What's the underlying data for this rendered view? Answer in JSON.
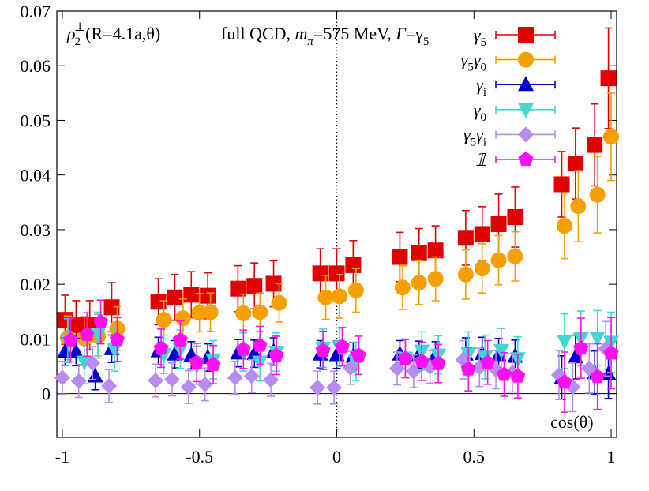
{
  "chart_data": {
    "type": "scatter",
    "title_parts": {
      "left_rho": "ρ",
      "left_sub": "2",
      "left_sup": "⊥",
      "left_rest": "(R=4.1a,θ)",
      "right_pre": "full QCD, ",
      "right_m": "m",
      "right_msub": "π",
      "right_mid": "=575 MeV, ",
      "right_gamma": "Γ",
      "right_eq": "=γ",
      "right_eqsub": "5"
    },
    "xlabel": "cos(θ)",
    "ylabel": "",
    "xlim": [
      -1.02,
      1.02
    ],
    "ylim": [
      -0.008,
      0.07
    ],
    "xticks": [
      {
        "v": -1,
        "label": "-1"
      },
      {
        "v": -0.5,
        "label": "-0.5"
      },
      {
        "v": 0,
        "label": "0"
      },
      {
        "v": 0.5,
        "label": "0.5"
      },
      {
        "v": 1,
        "label": "1"
      }
    ],
    "yticks": [
      {
        "v": 0,
        "label": "0"
      },
      {
        "v": 0.01,
        "label": "0.01"
      },
      {
        "v": 0.02,
        "label": "0.02"
      },
      {
        "v": 0.03,
        "label": "0.03"
      },
      {
        "v": 0.04,
        "label": "0.04"
      },
      {
        "v": 0.05,
        "label": "0.05"
      },
      {
        "v": 0.06,
        "label": "0.06"
      },
      {
        "v": 0.07,
        "label": "0.07"
      }
    ],
    "grid": false,
    "zero_line": true,
    "vertical_dotted_at": 0,
    "legend_placement": "top-right",
    "series": [
      {
        "name": "γ5",
        "legend_main": "γ",
        "legend_sub": "5",
        "color": "#e00000",
        "marker": "square",
        "points": [
          {
            "x": -0.99,
            "y": 0.0135,
            "err": 0.0045
          },
          {
            "x": -0.95,
            "y": 0.0125,
            "err": 0.0045
          },
          {
            "x": -0.9,
            "y": 0.0125,
            "err": 0.0045
          },
          {
            "x": -0.82,
            "y": 0.0158,
            "err": 0.0045
          },
          {
            "x": -0.65,
            "y": 0.0168,
            "err": 0.0042
          },
          {
            "x": -0.59,
            "y": 0.0176,
            "err": 0.0042
          },
          {
            "x": -0.53,
            "y": 0.0181,
            "err": 0.0042
          },
          {
            "x": -0.47,
            "y": 0.0179,
            "err": 0.0042
          },
          {
            "x": -0.36,
            "y": 0.0192,
            "err": 0.0042
          },
          {
            "x": -0.3,
            "y": 0.0197,
            "err": 0.0042
          },
          {
            "x": -0.23,
            "y": 0.0201,
            "err": 0.0042
          },
          {
            "x": -0.06,
            "y": 0.022,
            "err": 0.0045
          },
          {
            "x": 0.0,
            "y": 0.022,
            "err": 0.0045
          },
          {
            "x": 0.06,
            "y": 0.0235,
            "err": 0.0045
          },
          {
            "x": 0.23,
            "y": 0.025,
            "err": 0.0045
          },
          {
            "x": 0.3,
            "y": 0.0257,
            "err": 0.0045
          },
          {
            "x": 0.36,
            "y": 0.0262,
            "err": 0.0045
          },
          {
            "x": 0.47,
            "y": 0.0285,
            "err": 0.005
          },
          {
            "x": 0.53,
            "y": 0.0292,
            "err": 0.005
          },
          {
            "x": 0.59,
            "y": 0.031,
            "err": 0.0055
          },
          {
            "x": 0.65,
            "y": 0.0323,
            "err": 0.0055
          },
          {
            "x": 0.82,
            "y": 0.0383,
            "err": 0.006
          },
          {
            "x": 0.87,
            "y": 0.0421,
            "err": 0.0065
          },
          {
            "x": 0.94,
            "y": 0.0455,
            "err": 0.0075
          },
          {
            "x": 0.99,
            "y": 0.0577,
            "err": 0.0092
          }
        ]
      },
      {
        "name": "γ5γ0",
        "legend_main": "γ",
        "legend_sub": "5",
        "legend_main2": "γ",
        "legend_sub2": "0",
        "color": "#f5a000",
        "marker": "circle",
        "points": [
          {
            "x": -0.98,
            "y": 0.0102,
            "err": 0.004
          },
          {
            "x": -0.92,
            "y": 0.0101,
            "err": 0.004
          },
          {
            "x": -0.87,
            "y": 0.0105,
            "err": 0.004
          },
          {
            "x": -0.8,
            "y": 0.0119,
            "err": 0.004
          },
          {
            "x": -0.63,
            "y": 0.0135,
            "err": 0.0035
          },
          {
            "x": -0.56,
            "y": 0.0138,
            "err": 0.0035
          },
          {
            "x": -0.5,
            "y": 0.0148,
            "err": 0.0035
          },
          {
            "x": -0.46,
            "y": 0.0149,
            "err": 0.0035
          },
          {
            "x": -0.34,
            "y": 0.0147,
            "err": 0.0035
          },
          {
            "x": -0.28,
            "y": 0.0149,
            "err": 0.0035
          },
          {
            "x": -0.21,
            "y": 0.0166,
            "err": 0.0035
          },
          {
            "x": -0.04,
            "y": 0.0176,
            "err": 0.004
          },
          {
            "x": 0.01,
            "y": 0.0178,
            "err": 0.004
          },
          {
            "x": 0.07,
            "y": 0.0189,
            "err": 0.004
          },
          {
            "x": 0.24,
            "y": 0.0194,
            "err": 0.004
          },
          {
            "x": 0.3,
            "y": 0.0203,
            "err": 0.004
          },
          {
            "x": 0.36,
            "y": 0.021,
            "err": 0.004
          },
          {
            "x": 0.47,
            "y": 0.0218,
            "err": 0.0045
          },
          {
            "x": 0.53,
            "y": 0.0229,
            "err": 0.0045
          },
          {
            "x": 0.59,
            "y": 0.0244,
            "err": 0.0045
          },
          {
            "x": 0.65,
            "y": 0.0251,
            "err": 0.0045
          },
          {
            "x": 0.83,
            "y": 0.0307,
            "err": 0.006
          },
          {
            "x": 0.88,
            "y": 0.0343,
            "err": 0.0065
          },
          {
            "x": 0.95,
            "y": 0.0364,
            "err": 0.007
          },
          {
            "x": 1.0,
            "y": 0.047,
            "err": 0.008
          }
        ]
      },
      {
        "name": "γi",
        "legend_main": "γ",
        "legend_sub": "i",
        "color": "#0000cc",
        "marker": "triangle-up",
        "points": [
          {
            "x": -0.99,
            "y": 0.0077,
            "err": 0.0025
          },
          {
            "x": -0.95,
            "y": 0.0076,
            "err": 0.0025
          },
          {
            "x": -0.88,
            "y": 0.0032,
            "err": 0.0025
          },
          {
            "x": -0.82,
            "y": 0.0082,
            "err": 0.0025
          },
          {
            "x": -0.65,
            "y": 0.0078,
            "err": 0.0025
          },
          {
            "x": -0.59,
            "y": 0.0072,
            "err": 0.0025
          },
          {
            "x": -0.53,
            "y": 0.007,
            "err": 0.0025
          },
          {
            "x": -0.47,
            "y": 0.0066,
            "err": 0.0025
          },
          {
            "x": -0.36,
            "y": 0.0074,
            "err": 0.0025
          },
          {
            "x": -0.3,
            "y": 0.0073,
            "err": 0.0025
          },
          {
            "x": -0.23,
            "y": 0.0077,
            "err": 0.0025
          },
          {
            "x": -0.06,
            "y": 0.0072,
            "err": 0.0025
          },
          {
            "x": 0.0,
            "y": 0.0071,
            "err": 0.0025
          },
          {
            "x": 0.06,
            "y": 0.0068,
            "err": 0.0025
          },
          {
            "x": 0.23,
            "y": 0.0072,
            "err": 0.0025
          },
          {
            "x": 0.3,
            "y": 0.0071,
            "err": 0.0025
          },
          {
            "x": 0.36,
            "y": 0.007,
            "err": 0.0025
          },
          {
            "x": 0.47,
            "y": 0.0072,
            "err": 0.003
          },
          {
            "x": 0.53,
            "y": 0.0073,
            "err": 0.003
          },
          {
            "x": 0.59,
            "y": 0.0071,
            "err": 0.003
          },
          {
            "x": 0.65,
            "y": 0.0068,
            "err": 0.003
          },
          {
            "x": 0.82,
            "y": 0.0029,
            "err": 0.004
          },
          {
            "x": 0.87,
            "y": 0.0067,
            "err": 0.004
          },
          {
            "x": 0.94,
            "y": 0.0038,
            "err": 0.004
          },
          {
            "x": 0.99,
            "y": 0.0036,
            "err": 0.0045
          }
        ]
      },
      {
        "name": "γ0",
        "legend_main": "γ",
        "legend_sub": "0",
        "color": "#40d8d0",
        "marker": "triangle-down",
        "points": [
          {
            "x": -0.98,
            "y": 0.0097,
            "err": 0.004
          },
          {
            "x": -0.92,
            "y": 0.0058,
            "err": 0.004
          },
          {
            "x": -0.87,
            "y": 0.0109,
            "err": 0.004
          },
          {
            "x": -0.81,
            "y": 0.0081,
            "err": 0.004
          },
          {
            "x": -0.63,
            "y": 0.0072,
            "err": 0.0035
          },
          {
            "x": -0.57,
            "y": 0.0081,
            "err": 0.0035
          },
          {
            "x": -0.51,
            "y": 0.0052,
            "err": 0.0035
          },
          {
            "x": -0.45,
            "y": 0.0062,
            "err": 0.0035
          },
          {
            "x": -0.34,
            "y": 0.0076,
            "err": 0.0035
          },
          {
            "x": -0.28,
            "y": 0.0058,
            "err": 0.0035
          },
          {
            "x": -0.22,
            "y": 0.0076,
            "err": 0.0035
          },
          {
            "x": -0.05,
            "y": 0.0083,
            "err": 0.0035
          },
          {
            "x": 0.01,
            "y": 0.0085,
            "err": 0.0035
          },
          {
            "x": 0.07,
            "y": 0.0059,
            "err": 0.0035
          },
          {
            "x": 0.25,
            "y": 0.0065,
            "err": 0.0035
          },
          {
            "x": 0.31,
            "y": 0.0078,
            "err": 0.0035
          },
          {
            "x": 0.37,
            "y": 0.0071,
            "err": 0.0035
          },
          {
            "x": 0.48,
            "y": 0.0073,
            "err": 0.004
          },
          {
            "x": 0.54,
            "y": 0.0067,
            "err": 0.004
          },
          {
            "x": 0.6,
            "y": 0.0079,
            "err": 0.004
          },
          {
            "x": 0.66,
            "y": 0.0064,
            "err": 0.004
          },
          {
            "x": 0.83,
            "y": 0.0096,
            "err": 0.005
          },
          {
            "x": 0.89,
            "y": 0.0101,
            "err": 0.005
          },
          {
            "x": 0.95,
            "y": 0.0102,
            "err": 0.005
          },
          {
            "x": 1.0,
            "y": 0.0094,
            "err": 0.0055
          }
        ]
      },
      {
        "name": "γ5γi",
        "legend_main": "γ",
        "legend_sub": "5",
        "legend_main2": "γ",
        "legend_sub2": "i",
        "color": "#b78cf0",
        "marker": "diamond",
        "points": [
          {
            "x": -1.0,
            "y": 0.0029,
            "err": 0.003
          },
          {
            "x": -0.94,
            "y": 0.0023,
            "err": 0.003
          },
          {
            "x": -0.89,
            "y": 0.0056,
            "err": 0.003
          },
          {
            "x": -0.83,
            "y": 0.0014,
            "err": 0.003
          },
          {
            "x": -0.66,
            "y": 0.0024,
            "err": 0.003
          },
          {
            "x": -0.6,
            "y": 0.0026,
            "err": 0.003
          },
          {
            "x": -0.54,
            "y": 0.0012,
            "err": 0.003
          },
          {
            "x": -0.48,
            "y": 0.0017,
            "err": 0.003
          },
          {
            "x": -0.37,
            "y": 0.0029,
            "err": 0.003
          },
          {
            "x": -0.31,
            "y": 0.0032,
            "err": 0.003
          },
          {
            "x": -0.24,
            "y": 0.0025,
            "err": 0.003
          },
          {
            "x": -0.07,
            "y": 0.0011,
            "err": 0.003
          },
          {
            "x": -0.01,
            "y": 0.0011,
            "err": 0.003
          },
          {
            "x": 0.05,
            "y": 0.0047,
            "err": 0.003
          },
          {
            "x": 0.22,
            "y": 0.0046,
            "err": 0.003
          },
          {
            "x": 0.28,
            "y": 0.0041,
            "err": 0.003
          },
          {
            "x": 0.34,
            "y": 0.0049,
            "err": 0.003
          },
          {
            "x": 0.46,
            "y": 0.0062,
            "err": 0.0035
          },
          {
            "x": 0.52,
            "y": 0.0048,
            "err": 0.0035
          },
          {
            "x": 0.58,
            "y": 0.0044,
            "err": 0.0035
          },
          {
            "x": 0.64,
            "y": 0.0038,
            "err": 0.0035
          },
          {
            "x": 0.81,
            "y": 0.0034,
            "err": 0.0045
          },
          {
            "x": 0.86,
            "y": 0.0012,
            "err": 0.0045
          },
          {
            "x": 0.92,
            "y": 0.0046,
            "err": 0.0045
          },
          {
            "x": 0.98,
            "y": 0.0082,
            "err": 0.005
          }
        ]
      },
      {
        "name": "𝟙",
        "legend_main": "𝟙",
        "legend_sub": "",
        "color": "#ff10f0",
        "marker": "pentagon",
        "points": [
          {
            "x": -0.97,
            "y": 0.0098,
            "err": 0.004
          },
          {
            "x": -0.91,
            "y": 0.0108,
            "err": 0.004
          },
          {
            "x": -0.86,
            "y": 0.0131,
            "err": 0.004
          },
          {
            "x": -0.8,
            "y": 0.0099,
            "err": 0.004
          },
          {
            "x": -0.64,
            "y": 0.0083,
            "err": 0.0035
          },
          {
            "x": -0.57,
            "y": 0.0098,
            "err": 0.0035
          },
          {
            "x": -0.51,
            "y": 0.0057,
            "err": 0.0035
          },
          {
            "x": -0.45,
            "y": 0.0053,
            "err": 0.0035
          },
          {
            "x": -0.34,
            "y": 0.0081,
            "err": 0.0035
          },
          {
            "x": -0.28,
            "y": 0.0088,
            "err": 0.0035
          },
          {
            "x": -0.22,
            "y": 0.007,
            "err": 0.0035
          },
          {
            "x": -0.05,
            "y": 0.0079,
            "err": 0.0035
          },
          {
            "x": 0.02,
            "y": 0.0086,
            "err": 0.0035
          },
          {
            "x": 0.08,
            "y": 0.007,
            "err": 0.0035
          },
          {
            "x": 0.25,
            "y": 0.0064,
            "err": 0.0035
          },
          {
            "x": 0.31,
            "y": 0.0059,
            "err": 0.0035
          },
          {
            "x": 0.37,
            "y": 0.0055,
            "err": 0.0035
          },
          {
            "x": 0.48,
            "y": 0.0045,
            "err": 0.004
          },
          {
            "x": 0.55,
            "y": 0.0057,
            "err": 0.004
          },
          {
            "x": 0.61,
            "y": 0.0035,
            "err": 0.004
          },
          {
            "x": 0.66,
            "y": 0.0032,
            "err": 0.004
          },
          {
            "x": 0.83,
            "y": 0.0021,
            "err": 0.0055
          },
          {
            "x": 0.89,
            "y": 0.0083,
            "err": 0.0055
          },
          {
            "x": 0.95,
            "y": 0.0031,
            "err": 0.006
          },
          {
            "x": 1.0,
            "y": 0.0074,
            "err": 0.0065
          }
        ]
      }
    ]
  }
}
